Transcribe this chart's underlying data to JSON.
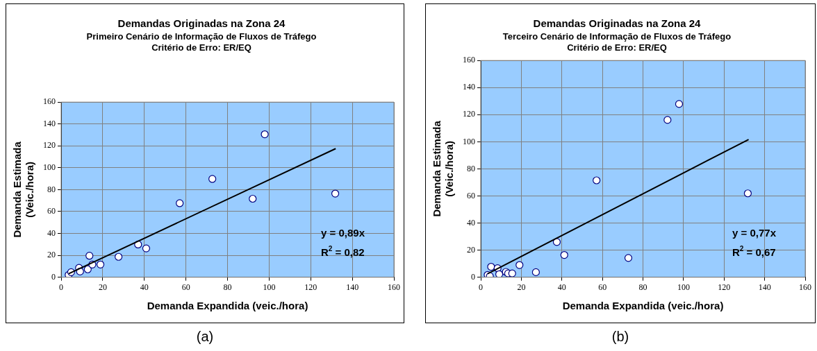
{
  "chart_data": [
    {
      "type": "scatter",
      "title": "Demandas Originadas na Zona 24",
      "subtitle": "Primeiro Cenário de Informação de Fluxos de Tráfego\nCritério de Erro: ER/EQ",
      "xlabel": "Demanda Expandida (veic./hora)",
      "ylabel": "Demanda Estimada\n(Veic./hora)",
      "annotations": [
        "y = 0,89x",
        "R$^{2}$ = 0,82",
        "(a)"
      ],
      "xlim": [
        0,
        160
      ],
      "xticks": [
        0,
        20,
        40,
        60,
        80,
        100,
        120,
        140,
        160
      ],
      "ylim": [
        0,
        160
      ],
      "yticks": [
        0,
        20,
        40,
        60,
        80,
        100,
        120,
        140,
        160
      ],
      "grid": true,
      "legend": false,
      "series": [
        {
          "marker": "circle",
          "color": "#ffffff",
          "x": [
            3.6,
            4.8,
            8.6,
            9.1,
            12.8,
            13.6,
            15.0,
            18.9,
            27.6,
            37.0,
            40.9,
            57.0,
            72.7,
            92.1,
            97.9,
            131.8
          ],
          "values": [
            2.1,
            4.6,
            8.5,
            5.2,
            7.2,
            19.6,
            11.6,
            11.6,
            18.6,
            29.9,
            26.3,
            67.6,
            89.8,
            71.7,
            130.6,
            76.4
          ]
        },
        {
          "type": "line",
          "color": "#000000",
          "x": [
            3.6,
            132
          ],
          "values": [
            3.2,
            117.5
          ]
        }
      ]
    },
    {
      "type": "scatter",
      "title": "Demandas Originadas na Zona 24",
      "subtitle": "Terceiro Cenário de Informação de Fluxos de Tráfego\nCritério de Erro: ER/EQ",
      "xlabel": "Demanda Expandida (veic./hora)",
      "ylabel": "Demanda Estimada\n(Veic./hora)",
      "annotations": [
        "y = 0,77x",
        "R$^{2}$ = 0,67",
        "(b)"
      ],
      "xlim": [
        0,
        160
      ],
      "xticks": [
        0,
        20,
        40,
        60,
        80,
        100,
        120,
        140,
        160
      ],
      "ylim": [
        0,
        160
      ],
      "yticks": [
        0,
        20,
        40,
        60,
        80,
        100,
        120,
        140,
        160
      ],
      "grid": true,
      "legend": false,
      "series": [
        {
          "marker": "circle",
          "color": "#ffffff",
          "x": [
            3.4,
            4.5,
            5.1,
            8.3,
            9.1,
            12.4,
            13.5,
            15.5,
            19.1,
            27.2,
            37.5,
            41.2,
            57.1,
            72.8,
            92.1,
            97.8,
            131.7
          ],
          "values": [
            1.7,
            0.7,
            7.7,
            6.6,
            2.2,
            3.9,
            2.8,
            2.8,
            9.0,
            3.7,
            26.0,
            16.4,
            71.5,
            14.2,
            116.1,
            127.9,
            61.9
          ]
        },
        {
          "type": "line",
          "color": "#000000",
          "x": [
            3.4,
            132.1
          ],
          "values": [
            2.6,
            101.7
          ]
        }
      ]
    }
  ]
}
